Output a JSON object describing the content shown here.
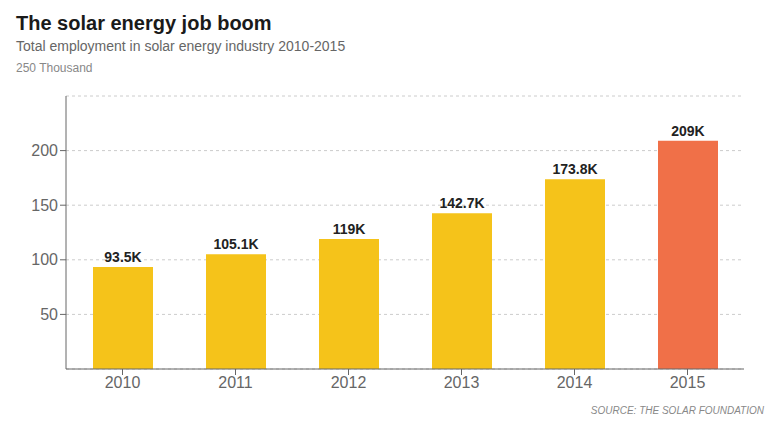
{
  "chart_data": {
    "type": "bar",
    "title": "The solar energy job boom",
    "subtitle": "Total employment in solar energy industry 2010-2015",
    "ylabel": "250 Thousand",
    "annotations": [
      "SOURCE: THE SOLAR FOUNDATION"
    ],
    "categories": [
      "2010",
      "2011",
      "2012",
      "2013",
      "2014",
      "2015"
    ],
    "values": [
      93.5,
      105.1,
      119.0,
      142.7,
      173.8,
      209.0
    ],
    "value_labels": [
      "93.5K",
      "105.1K",
      "119K",
      "142.7K",
      "173.8K",
      "209K"
    ],
    "colors": [
      "#F5C31A",
      "#F5C31A",
      "#F5C31A",
      "#F5C31A",
      "#F5C31A",
      "#F07048"
    ],
    "ylim": [
      0,
      250
    ],
    "yticks": [
      50,
      100,
      150,
      200
    ],
    "grid": true,
    "data_labels": true
  }
}
